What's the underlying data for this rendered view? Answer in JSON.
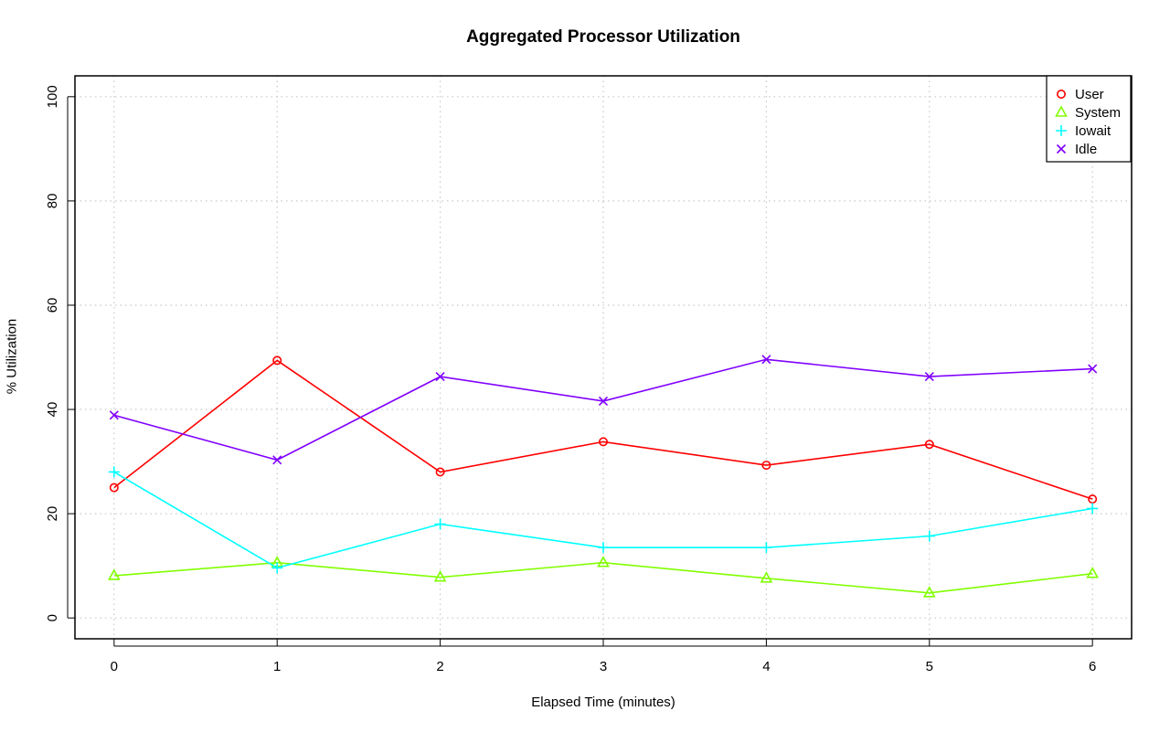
{
  "chart_data": {
    "type": "line",
    "title": "Aggregated Processor Utilization",
    "xlabel": "Elapsed Time (minutes)",
    "ylabel": "% Utilization",
    "x": [
      0,
      1,
      2,
      3,
      4,
      5,
      6
    ],
    "x_ticks": [
      "0",
      "1",
      "2",
      "3",
      "4",
      "5",
      "6"
    ],
    "y_ticks": [
      "0",
      "20",
      "40",
      "60",
      "80",
      "100"
    ],
    "xlim": [
      -0.24,
      6.24
    ],
    "ylim": [
      -4,
      104
    ],
    "grid": true,
    "legend_position": "top-right",
    "series": [
      {
        "name": "User",
        "color": "#ff0000",
        "marker": "circle",
        "values": [
          25.0,
          49.4,
          28.0,
          33.8,
          29.3,
          33.3,
          22.8
        ]
      },
      {
        "name": "System",
        "color": "#80ff00",
        "marker": "triangle",
        "values": [
          8.1,
          10.6,
          7.8,
          10.6,
          7.6,
          4.8,
          8.5
        ]
      },
      {
        "name": "Iowait",
        "color": "#00ffff",
        "marker": "plus",
        "values": [
          28.0,
          9.6,
          18.0,
          13.5,
          13.5,
          15.7,
          21.0
        ]
      },
      {
        "name": "Idle",
        "color": "#8000ff",
        "marker": "cross",
        "values": [
          38.9,
          30.3,
          46.3,
          41.6,
          49.6,
          46.3,
          47.8
        ]
      }
    ]
  }
}
